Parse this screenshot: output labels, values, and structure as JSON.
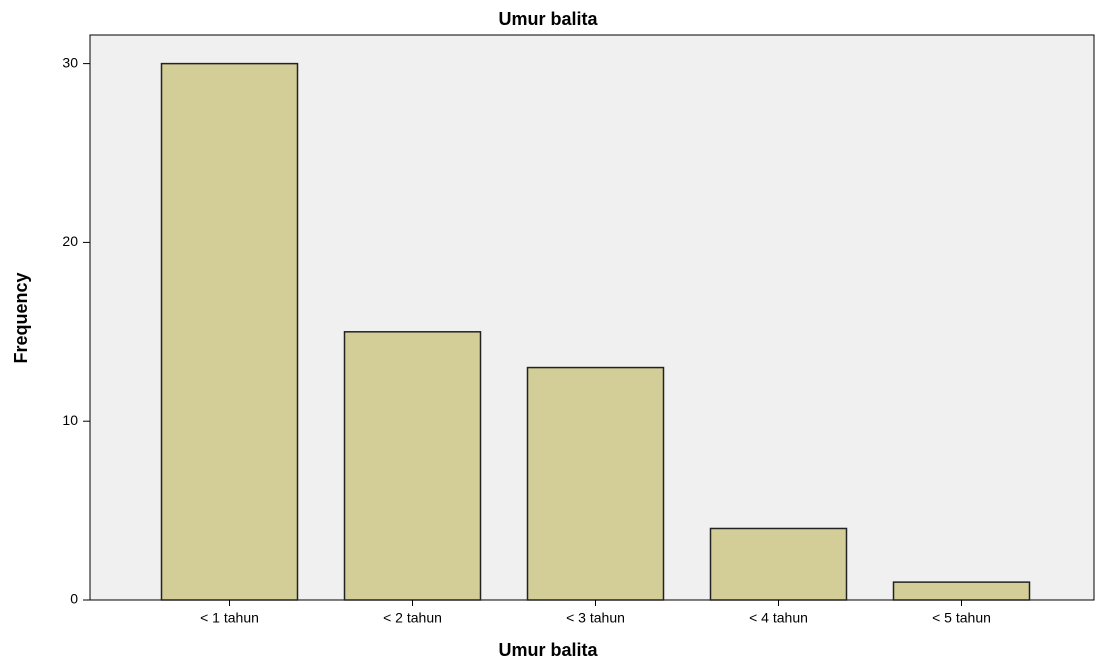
{
  "chart_data": {
    "type": "bar",
    "title": "Umur balita",
    "x_label": "Umur balita",
    "y_label": "Frequency",
    "categories": [
      "< 1 tahun",
      "< 2 tahun",
      "< 3 tahun",
      "< 4 tahun",
      "< 5 tahun"
    ],
    "values": [
      30,
      15,
      13,
      4,
      1
    ],
    "color": "#d3ce97",
    "ylim": [
      0,
      31.6
    ],
    "yticks": [
      0,
      10,
      20,
      30
    ],
    "grid": false
  }
}
